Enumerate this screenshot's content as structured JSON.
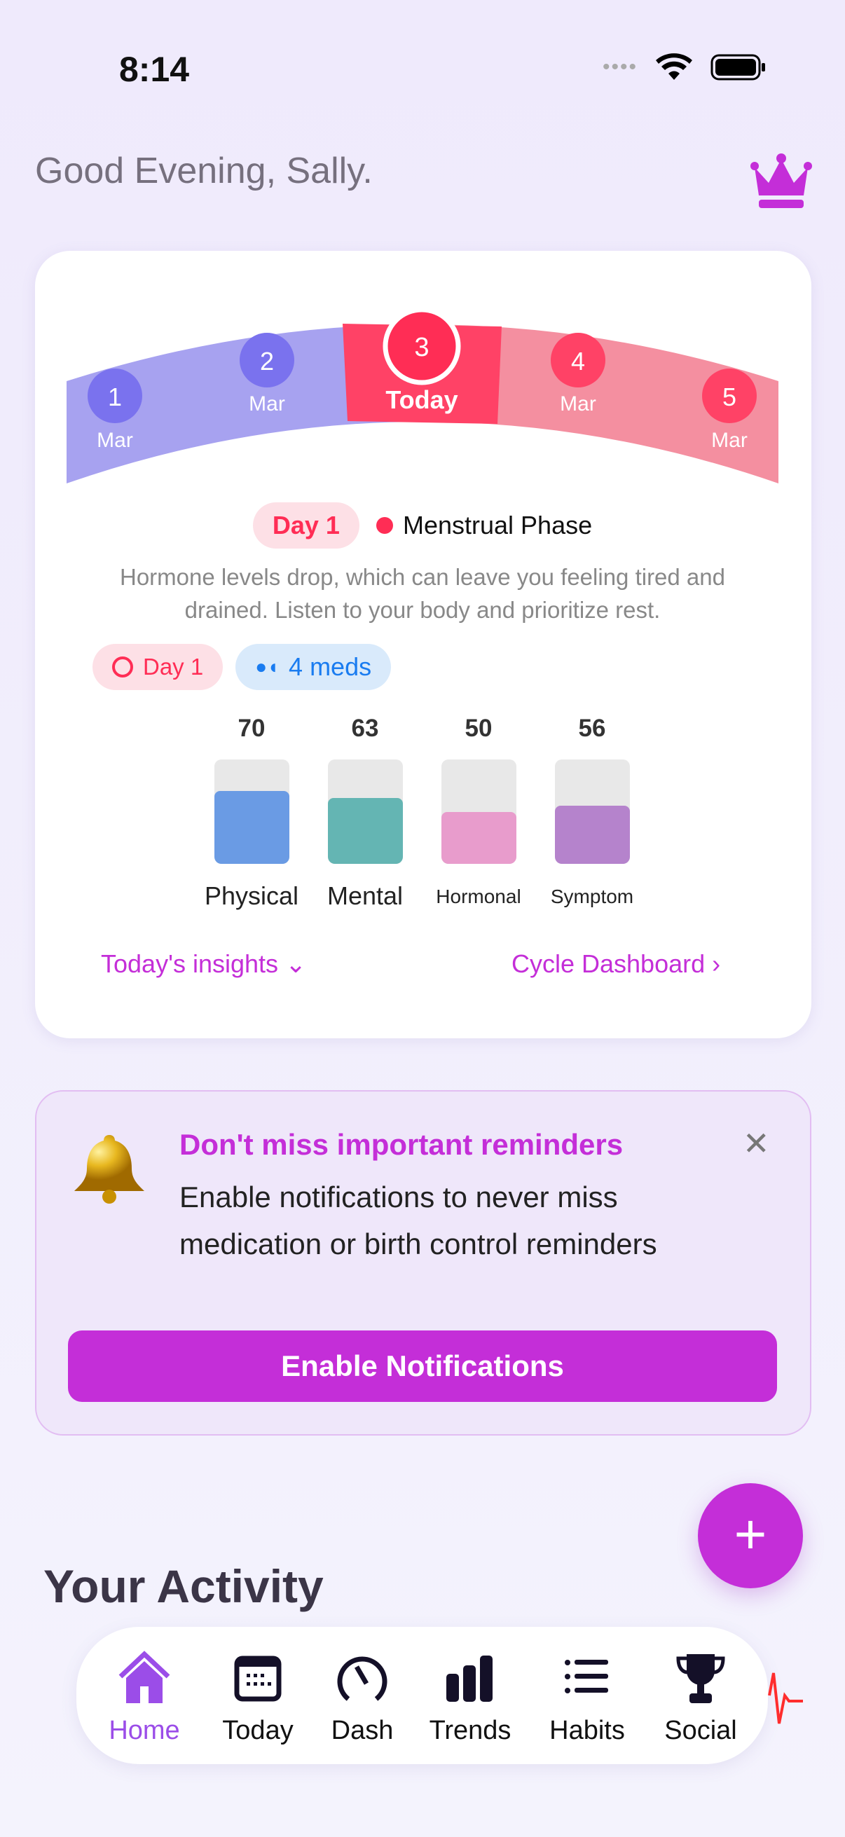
{
  "status_bar": {
    "time": "8:14"
  },
  "header": {
    "greeting": "Good Evening, Sally.",
    "premium_icon": "crown-icon"
  },
  "cycle_card": {
    "days": [
      {
        "num": "1",
        "label": "Mar"
      },
      {
        "num": "2",
        "label": "Mar"
      },
      {
        "num": "3",
        "label": "Today"
      },
      {
        "num": "4",
        "label": "Mar"
      },
      {
        "num": "5",
        "label": "Mar"
      }
    ],
    "day_badge": "Day 1",
    "phase": "Menstrual Phase",
    "description": "Hormone levels drop, which can leave you feeling tired and drained. Listen to your body and prioritize rest.",
    "chips": {
      "day": "Day 1",
      "meds": "4 meds"
    },
    "scores": [
      {
        "label": "Physical",
        "value": 70,
        "color": "#6a9be4"
      },
      {
        "label": "Mental",
        "value": 63,
        "color": "#64b5b3"
      },
      {
        "label": "Hormonal",
        "value": 50,
        "color": "#e89ccc"
      },
      {
        "label": "Symptom",
        "value": 56,
        "color": "#b583cc"
      }
    ],
    "insights_link": "Today's insights",
    "dashboard_link": "Cycle Dashboard",
    "colors": {
      "follicular": "#a7a2f0",
      "today": "#ff4266",
      "menstrual": "#f48fa0"
    }
  },
  "reminder": {
    "title": "Don't miss important reminders",
    "body": "Enable notifications to never miss medication or birth control reminders",
    "button": "Enable Notifications"
  },
  "fab": {
    "label": "+"
  },
  "activity": {
    "title": "Your Activity"
  },
  "tabbar": {
    "items": [
      {
        "label": "Home",
        "active": true
      },
      {
        "label": "Today"
      },
      {
        "label": "Dash"
      },
      {
        "label": "Trends"
      },
      {
        "label": "Habits"
      },
      {
        "label": "Social"
      }
    ]
  }
}
